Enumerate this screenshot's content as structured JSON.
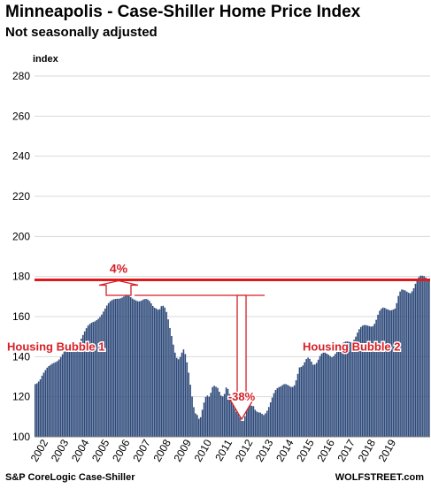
{
  "header": {
    "title": "Minneapolis - Case-Shiller Home Price Index",
    "subtitle": "Not seasonally adjusted"
  },
  "footer": {
    "source": "S&P CoreLogic Case-Shiller",
    "brand": "WOLFSTREET.com"
  },
  "colors": {
    "bar": "#2e4a7a",
    "reference_line": "#e0191e",
    "annotation": "#d61f26",
    "grid": "#d9d9d9"
  },
  "chart_data": {
    "type": "bar",
    "ylabel": "index",
    "ylim": [
      100,
      280
    ],
    "yticks": [
      100,
      120,
      140,
      160,
      180,
      200,
      220,
      240,
      260,
      280
    ],
    "grid": true,
    "legend": "none",
    "xlabels": [
      "2002",
      "2003",
      "2004",
      "2005",
      "2006",
      "2007",
      "2008",
      "2009",
      "2010",
      "2011",
      "2012",
      "2013",
      "2014",
      "2015",
      "2016",
      "2017",
      "2018",
      "2019"
    ],
    "start": "2002-01",
    "frequency": "monthly",
    "values": [
      126.3,
      126.7,
      127.6,
      128.7,
      130.5,
      132.0,
      133.3,
      134.5,
      135.3,
      135.9,
      136.5,
      136.9,
      137.3,
      137.8,
      138.6,
      139.8,
      141.2,
      142.5,
      143.6,
      144.4,
      144.9,
      145.2,
      145.5,
      145.8,
      146.0,
      146.5,
      147.5,
      149.0,
      150.8,
      152.6,
      154.2,
      155.5,
      156.3,
      156.9,
      157.3,
      157.6,
      158.2,
      158.9,
      159.8,
      161.0,
      162.5,
      164.0,
      165.5,
      166.7,
      167.6,
      168.2,
      168.6,
      168.8,
      168.9,
      168.9,
      169.1,
      169.5,
      170.0,
      170.4,
      170.6,
      170.3,
      169.7,
      169.0,
      168.5,
      168.1,
      167.7,
      167.6,
      167.8,
      168.3,
      168.7,
      168.8,
      168.5,
      167.8,
      166.6,
      165.3,
      164.4,
      164.0,
      163.4,
      163.7,
      165.2,
      165.4,
      164.5,
      162.3,
      158.6,
      154.3,
      150.3,
      146.0,
      142.0,
      139.4,
      138.7,
      139.8,
      142.0,
      143.6,
      141.3,
      137.2,
      132.0,
      126.0,
      120.1,
      114.8,
      111.7,
      110.9,
      109.0,
      109.8,
      113.5,
      117.1,
      119.9,
      120.6,
      120.0,
      122.0,
      124.8,
      125.5,
      125.0,
      124.4,
      122.5,
      120.6,
      120.2,
      121.4,
      124.6,
      123.9,
      121.3,
      118.9,
      116.3,
      114.3,
      112.5,
      111.5,
      109.9,
      108.0,
      107.9,
      110.3,
      113.5,
      115.7,
      115.8,
      115.5,
      115.3,
      113.5,
      112.6,
      112.2,
      112.1,
      111.5,
      110.9,
      111.7,
      113.0,
      114.9,
      117.2,
      119.6,
      121.8,
      123.4,
      124.3,
      124.8,
      125.2,
      125.8,
      126.3,
      126.3,
      125.9,
      125.4,
      124.9,
      124.9,
      125.7,
      128.2,
      131.4,
      134.6,
      134.9,
      135.6,
      137.2,
      138.8,
      139.5,
      138.9,
      137.5,
      136.0,
      136.1,
      136.9,
      138.5,
      140.3,
      141.5,
      142.0,
      142.0,
      141.5,
      141.0,
      140.3,
      139.7,
      140.3,
      141.4,
      142.7,
      144.0,
      145.3,
      146.4,
      147.1,
      147.5,
      147.6,
      147.4,
      147.2,
      147.3,
      148.4,
      150.0,
      152.0,
      153.7,
      154.8,
      155.5,
      155.8,
      155.7,
      155.5,
      155.2,
      155.0,
      155.2,
      156.4,
      158.4,
      160.9,
      162.9,
      163.9,
      164.5,
      164.3,
      163.8,
      163.5,
      163.1,
      163.2,
      163.5,
      164.0,
      166.7,
      170.3,
      172.5,
      173.5,
      173.3,
      173.0,
      172.4,
      171.9,
      171.6,
      172.6,
      174.1,
      176.4,
      178.0,
      179.7,
      180.4,
      180.4,
      180.2,
      179.5,
      178.6,
      178.1
    ],
    "reference_line": {
      "value": 178.3
    },
    "annotations": [
      {
        "text": "4%"
      },
      {
        "text": "-38%"
      },
      {
        "text": "Housing Bubble 1"
      },
      {
        "text": "Housing Bubble 2"
      }
    ]
  }
}
